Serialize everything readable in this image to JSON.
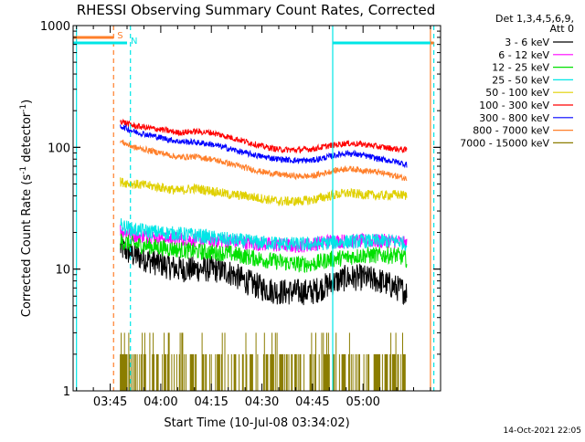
{
  "chart_data": {
    "type": "line",
    "title": "RHESSI Observing Summary Count Rates, Corrected",
    "xlabel": "Start Time (10-Jul-08 03:34:02)",
    "ylabel": "Corrected Count Rate (s⁻¹ detector⁻¹)",
    "ylabel_parts": [
      "Corrected Count Rate (s",
      "-1",
      " detector",
      "-1",
      ")"
    ],
    "yscale": "log",
    "ylim": [
      1,
      1000
    ],
    "xlim": [
      "03:34",
      "05:23"
    ],
    "x_ticks": [
      "03:45",
      "04:00",
      "04:15",
      "04:30",
      "04:45",
      "05:00"
    ],
    "y_ticks": [
      "1",
      "10",
      "100",
      "1000"
    ],
    "legend_header": [
      "Det 1,3,4,5,6,9,",
      "Att 0"
    ],
    "legend_position": "top-right, outside plot",
    "timestamp": "14-Oct-2021 22:05",
    "markers": [
      {
        "label": "S",
        "color": "#ff7f2a",
        "start": "03:35",
        "end": "03:46"
      },
      {
        "label": "N",
        "color": "#00e6e6",
        "start": "03:35",
        "end": "03:50"
      }
    ],
    "marker_right": [
      {
        "color": "#00e6e6",
        "start": "04:51",
        "end": "05:20"
      },
      {
        "color": "#ff7f2a",
        "start": "05:20",
        "end": "05:21"
      }
    ],
    "vlines": [
      {
        "time": "03:35",
        "color": "#00e6e6",
        "style": "solid"
      },
      {
        "time": "03:46",
        "color": "#ff7f2a",
        "style": "dashed"
      },
      {
        "time": "03:51",
        "color": "#00e6e6",
        "style": "dashed"
      },
      {
        "time": "04:51",
        "color": "#00e6e6",
        "style": "solid"
      },
      {
        "time": "05:20",
        "color": "#ff7f2a",
        "style": "solid"
      },
      {
        "time": "05:21",
        "color": "#00e6e6",
        "style": "dashed"
      }
    ],
    "series": [
      {
        "name": "3 - 6 keV",
        "color": "#000000",
        "noise": 0.11,
        "x": [
          "03:48",
          "03:52",
          "04:00",
          "04:05",
          "04:10",
          "04:15",
          "04:20",
          "04:25",
          "04:30",
          "04:35",
          "04:40",
          "04:45",
          "04:50",
          "04:55",
          "05:00",
          "05:05",
          "05:10",
          "05:13"
        ],
        "y": [
          15,
          13,
          11,
          10,
          10,
          10,
          9.5,
          8,
          7,
          6.5,
          6.5,
          6.5,
          7.5,
          8.5,
          8.5,
          8,
          7,
          6.5
        ]
      },
      {
        "name": "6 - 12 keV",
        "color": "#ff00ff",
        "noise": 0.06,
        "x": [
          "03:48",
          "03:52",
          "04:00",
          "04:10",
          "04:20",
          "04:30",
          "04:40",
          "04:45",
          "04:50",
          "05:00",
          "05:10",
          "05:13"
        ],
        "y": [
          21,
          19,
          18,
          17.5,
          17,
          16,
          15.5,
          16,
          17,
          17,
          17,
          16
        ]
      },
      {
        "name": "12 - 25 keV",
        "color": "#00e000",
        "noise": 0.07,
        "x": [
          "03:48",
          "03:52",
          "04:00",
          "04:10",
          "04:20",
          "04:30",
          "04:40",
          "04:45",
          "04:50",
          "05:00",
          "05:10",
          "05:13"
        ],
        "y": [
          17,
          16,
          15,
          14,
          13.5,
          12,
          11,
          11,
          12,
          13,
          13,
          12
        ]
      },
      {
        "name": "25 - 50 keV",
        "color": "#00e6e6",
        "noise": 0.06,
        "x": [
          "03:48",
          "03:52",
          "04:00",
          "04:10",
          "04:20",
          "04:30",
          "04:40",
          "04:45",
          "04:50",
          "05:00",
          "05:10",
          "05:13"
        ],
        "y": [
          23,
          21,
          20,
          19,
          17.5,
          16.5,
          16,
          16,
          16.5,
          17,
          17,
          16
        ]
      },
      {
        "name": "50 - 100 keV",
        "color": "#e0d000",
        "noise": 0.04,
        "x": [
          "03:48",
          "03:52",
          "04:00",
          "04:05",
          "04:10",
          "04:15",
          "04:20",
          "04:25",
          "04:30",
          "04:35",
          "04:40",
          "04:45",
          "04:50",
          "04:55",
          "05:00",
          "05:05",
          "05:10",
          "05:13"
        ],
        "y": [
          52,
          50,
          47,
          44,
          46,
          44,
          41,
          40,
          38,
          36,
          36,
          37,
          40,
          42,
          41,
          40,
          41,
          40
        ]
      },
      {
        "name": "100 - 300 keV",
        "color": "#ff0000",
        "noise": 0.025,
        "x": [
          "03:48",
          "03:52",
          "04:00",
          "04:05",
          "04:10",
          "04:15",
          "04:20",
          "04:25",
          "04:30",
          "04:35",
          "04:40",
          "04:45",
          "04:50",
          "04:55",
          "05:00",
          "05:05",
          "05:10",
          "05:13"
        ],
        "y": [
          165,
          150,
          140,
          132,
          135,
          132,
          122,
          112,
          102,
          96,
          95,
          97,
          103,
          108,
          106,
          101,
          97,
          95
        ]
      },
      {
        "name": "300 - 800 keV",
        "color": "#0000ff",
        "noise": 0.025,
        "x": [
          "03:48",
          "03:52",
          "04:00",
          "04:05",
          "04:10",
          "04:15",
          "04:20",
          "04:25",
          "04:30",
          "04:35",
          "04:40",
          "04:45",
          "04:50",
          "04:55",
          "05:00",
          "05:05",
          "05:10",
          "05:13"
        ],
        "y": [
          150,
          135,
          120,
          112,
          110,
          106,
          98,
          90,
          84,
          80,
          78,
          78,
          84,
          90,
          86,
          80,
          76,
          72
        ]
      },
      {
        "name": "800 - 7000 keV",
        "color": "#ff7f2a",
        "noise": 0.025,
        "x": [
          "03:48",
          "03:52",
          "04:00",
          "04:05",
          "04:10",
          "04:15",
          "04:20",
          "04:25",
          "04:30",
          "04:35",
          "04:40",
          "04:45",
          "04:50",
          "04:55",
          "05:00",
          "05:05",
          "05:10",
          "05:13"
        ],
        "y": [
          112,
          100,
          90,
          83,
          84,
          80,
          74,
          68,
          63,
          60,
          58,
          58,
          63,
          67,
          65,
          62,
          58,
          55
        ]
      },
      {
        "name": "7000 - 15000 keV",
        "color": "#8b7d00",
        "noise": 0,
        "x": [
          "03:48",
          "05:13"
        ],
        "y": [
          2,
          2
        ],
        "style": "sparse counts at 1, 2 and 3"
      }
    ]
  }
}
